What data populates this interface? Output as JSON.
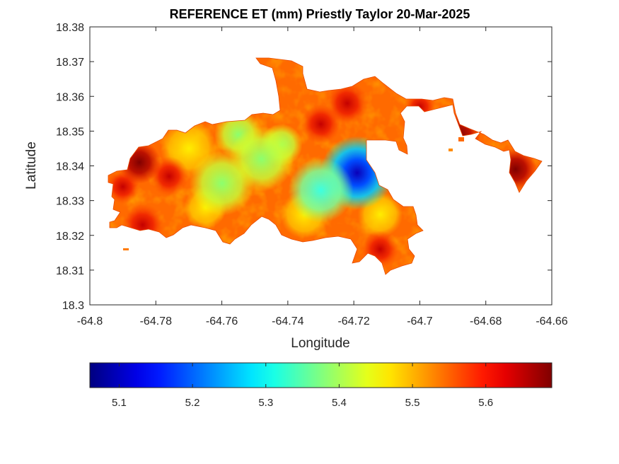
{
  "title": "REFERENCE ET (mm) Priestly Taylor 20-Mar-2025",
  "chart_data": {
    "type": "heatmap",
    "title": "REFERENCE ET (mm) Priestly Taylor 20-Mar-2025",
    "xlabel": "Longitude",
    "ylabel": "Latitude",
    "xlim": [
      -64.8,
      -64.66
    ],
    "ylim": [
      18.3,
      18.38
    ],
    "x_ticks": [
      "-64.8",
      "-64.78",
      "-64.76",
      "-64.74",
      "-64.72",
      "-64.7",
      "-64.68",
      "-64.66"
    ],
    "y_ticks": [
      "18.3",
      "18.31",
      "18.32",
      "18.33",
      "18.34",
      "18.35",
      "18.36",
      "18.37",
      "18.38"
    ],
    "colormap": "jet",
    "colorbar": {
      "orientation": "horizontal",
      "range": [
        5.06,
        5.69
      ],
      "ticks": [
        "5.1",
        "5.2",
        "5.3",
        "5.4",
        "5.5",
        "5.6"
      ]
    },
    "hotspots": [
      {
        "lon": -64.719,
        "lat": 18.338,
        "value": 5.08,
        "note": "minimum"
      },
      {
        "lon": -64.748,
        "lat": 18.342,
        "value": 5.35
      },
      {
        "lon": -64.73,
        "lat": 18.333,
        "value": 5.28
      },
      {
        "lon": -64.76,
        "lat": 18.335,
        "value": 5.4
      },
      {
        "lon": -64.785,
        "lat": 18.341,
        "value": 5.66
      },
      {
        "lon": -64.784,
        "lat": 18.323,
        "value": 5.64
      },
      {
        "lon": -64.671,
        "lat": 18.339,
        "value": 5.67
      },
      {
        "lon": -64.688,
        "lat": 18.349,
        "value": 5.68
      },
      {
        "lon": -64.722,
        "lat": 18.358,
        "value": 5.62
      }
    ]
  }
}
